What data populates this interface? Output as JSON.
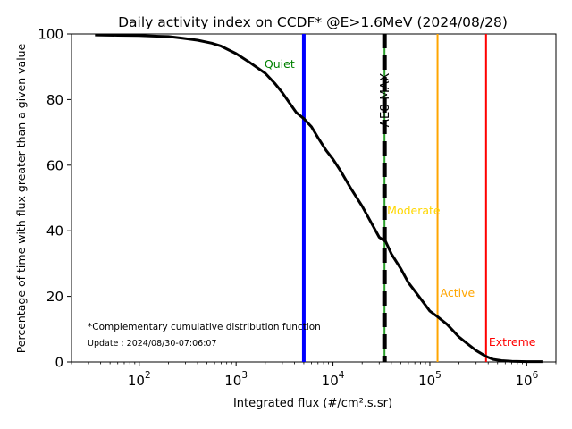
{
  "chart_data": {
    "type": "line",
    "title": "Daily activity index on CCDF* @E>1.6MeV (2024/08/28)",
    "xlabel": "Integrated flux (#/cm².s.sr)",
    "ylabel": "Percentage of time with flux greater than a given value",
    "xscale": "log",
    "xlim": [
      20,
      2000000
    ],
    "ylim": [
      0,
      100
    ],
    "x_tick_labels": [
      {
        "value": 100,
        "base": "10",
        "exp": "2"
      },
      {
        "value": 1000,
        "base": "10",
        "exp": "3"
      },
      {
        "value": 10000,
        "base": "10",
        "exp": "4"
      },
      {
        "value": 100000,
        "base": "10",
        "exp": "5"
      },
      {
        "value": 1000000,
        "base": "10",
        "exp": "6"
      }
    ],
    "y_ticks": [
      0,
      20,
      40,
      60,
      80,
      100
    ],
    "grid": false,
    "series": [
      {
        "color": "#000000",
        "x": [
          35,
          60,
          100,
          160,
          200,
          280,
          400,
          560,
          700,
          1000,
          1400,
          2000,
          2500,
          3000,
          3500,
          4200,
          5000,
          6000,
          7000,
          8500,
          10000,
          12000,
          15000,
          20000,
          25000,
          30000,
          35000,
          40000,
          50000,
          60000,
          70000,
          85000,
          100000,
          120000,
          150000,
          200000,
          250000,
          300000,
          380000,
          450000,
          550000,
          700000,
          1000000,
          1450000
        ],
        "y": [
          99.7,
          99.6,
          99.5,
          99.3,
          99.2,
          98.7,
          98.1,
          97.2,
          96.3,
          94.0,
          91.2,
          88.0,
          85.0,
          82.1,
          79.3,
          76.0,
          74.2,
          71.7,
          68.4,
          64.5,
          61.8,
          58.2,
          53.3,
          47.5,
          42.3,
          38.0,
          36.7,
          33.0,
          28.5,
          24.2,
          21.6,
          18.3,
          15.5,
          13.8,
          11.5,
          7.6,
          5.3,
          3.5,
          1.7,
          0.8,
          0.4,
          0.2,
          0.1,
          0.1
        ]
      }
    ],
    "threshold_lines": [
      {
        "x": 5000,
        "label": "Quiet",
        "color": "#0000ff",
        "label_color": "#008000",
        "style": "solid"
      },
      {
        "x": 34000,
        "label": "AE8 MAX",
        "color": "#000000",
        "label_color": "#000000",
        "style": "dashed"
      },
      {
        "x": 34000,
        "label": "Moderate",
        "color": "#2ca02c",
        "label_color": "#ffd700",
        "style": "solid"
      },
      {
        "x": 120000,
        "label": "Active",
        "color": "#ffa500",
        "label_color": "#ffa500",
        "style": "solid"
      },
      {
        "x": 380000,
        "label": "Extreme",
        "color": "#ff0000",
        "label_color": "#ff0000",
        "style": "solid"
      }
    ],
    "annotations": [
      "*Complementary cumulative distribution function",
      "Update : 2024/08/30-07:06:07"
    ]
  }
}
